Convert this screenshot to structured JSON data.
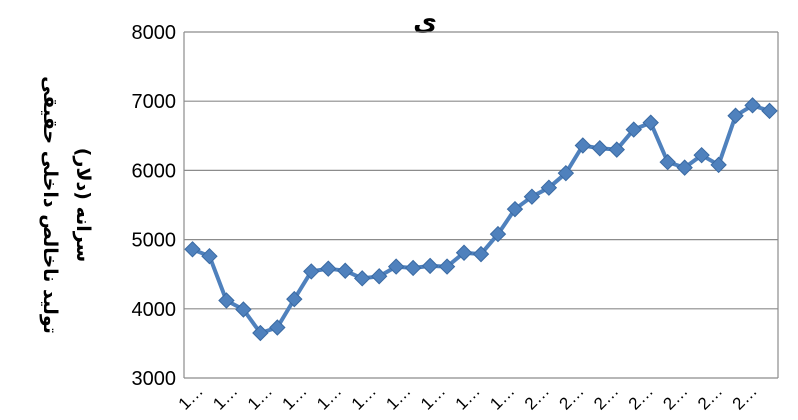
{
  "chart_data": {
    "type": "line",
    "title_fragment": "ی",
    "ylabel_line1": "تولید ناخالص داخلی حقیقی",
    "ylabel_line2": "سرانه (دلار)",
    "ylim": [
      3000,
      8000
    ],
    "yticks": [
      3000,
      4000,
      5000,
      6000,
      7000,
      8000
    ],
    "grid": true,
    "legend": "none",
    "line_color": "#4F81BD",
    "marker_color": "#4F81BD",
    "x_tick_labels": [
      "1…",
      "1…",
      "1…",
      "1…",
      "1…",
      "1…",
      "1…",
      "1…",
      "1…",
      "1…",
      "2…",
      "2…",
      "2…",
      "2…",
      "2…",
      "2…",
      "2…"
    ],
    "series": [
      {
        "values": [
          4860,
          4760,
          4120,
          3990,
          3650,
          3730,
          4140,
          4540,
          4580,
          4550,
          4440,
          4470,
          4610,
          4590,
          4620,
          4610,
          4810,
          4790,
          5080,
          5440,
          5620,
          5750,
          5960,
          6360,
          6320,
          6300,
          6590,
          6690,
          6120,
          6040,
          6220,
          6080,
          6790,
          6940,
          6860
        ]
      }
    ]
  }
}
